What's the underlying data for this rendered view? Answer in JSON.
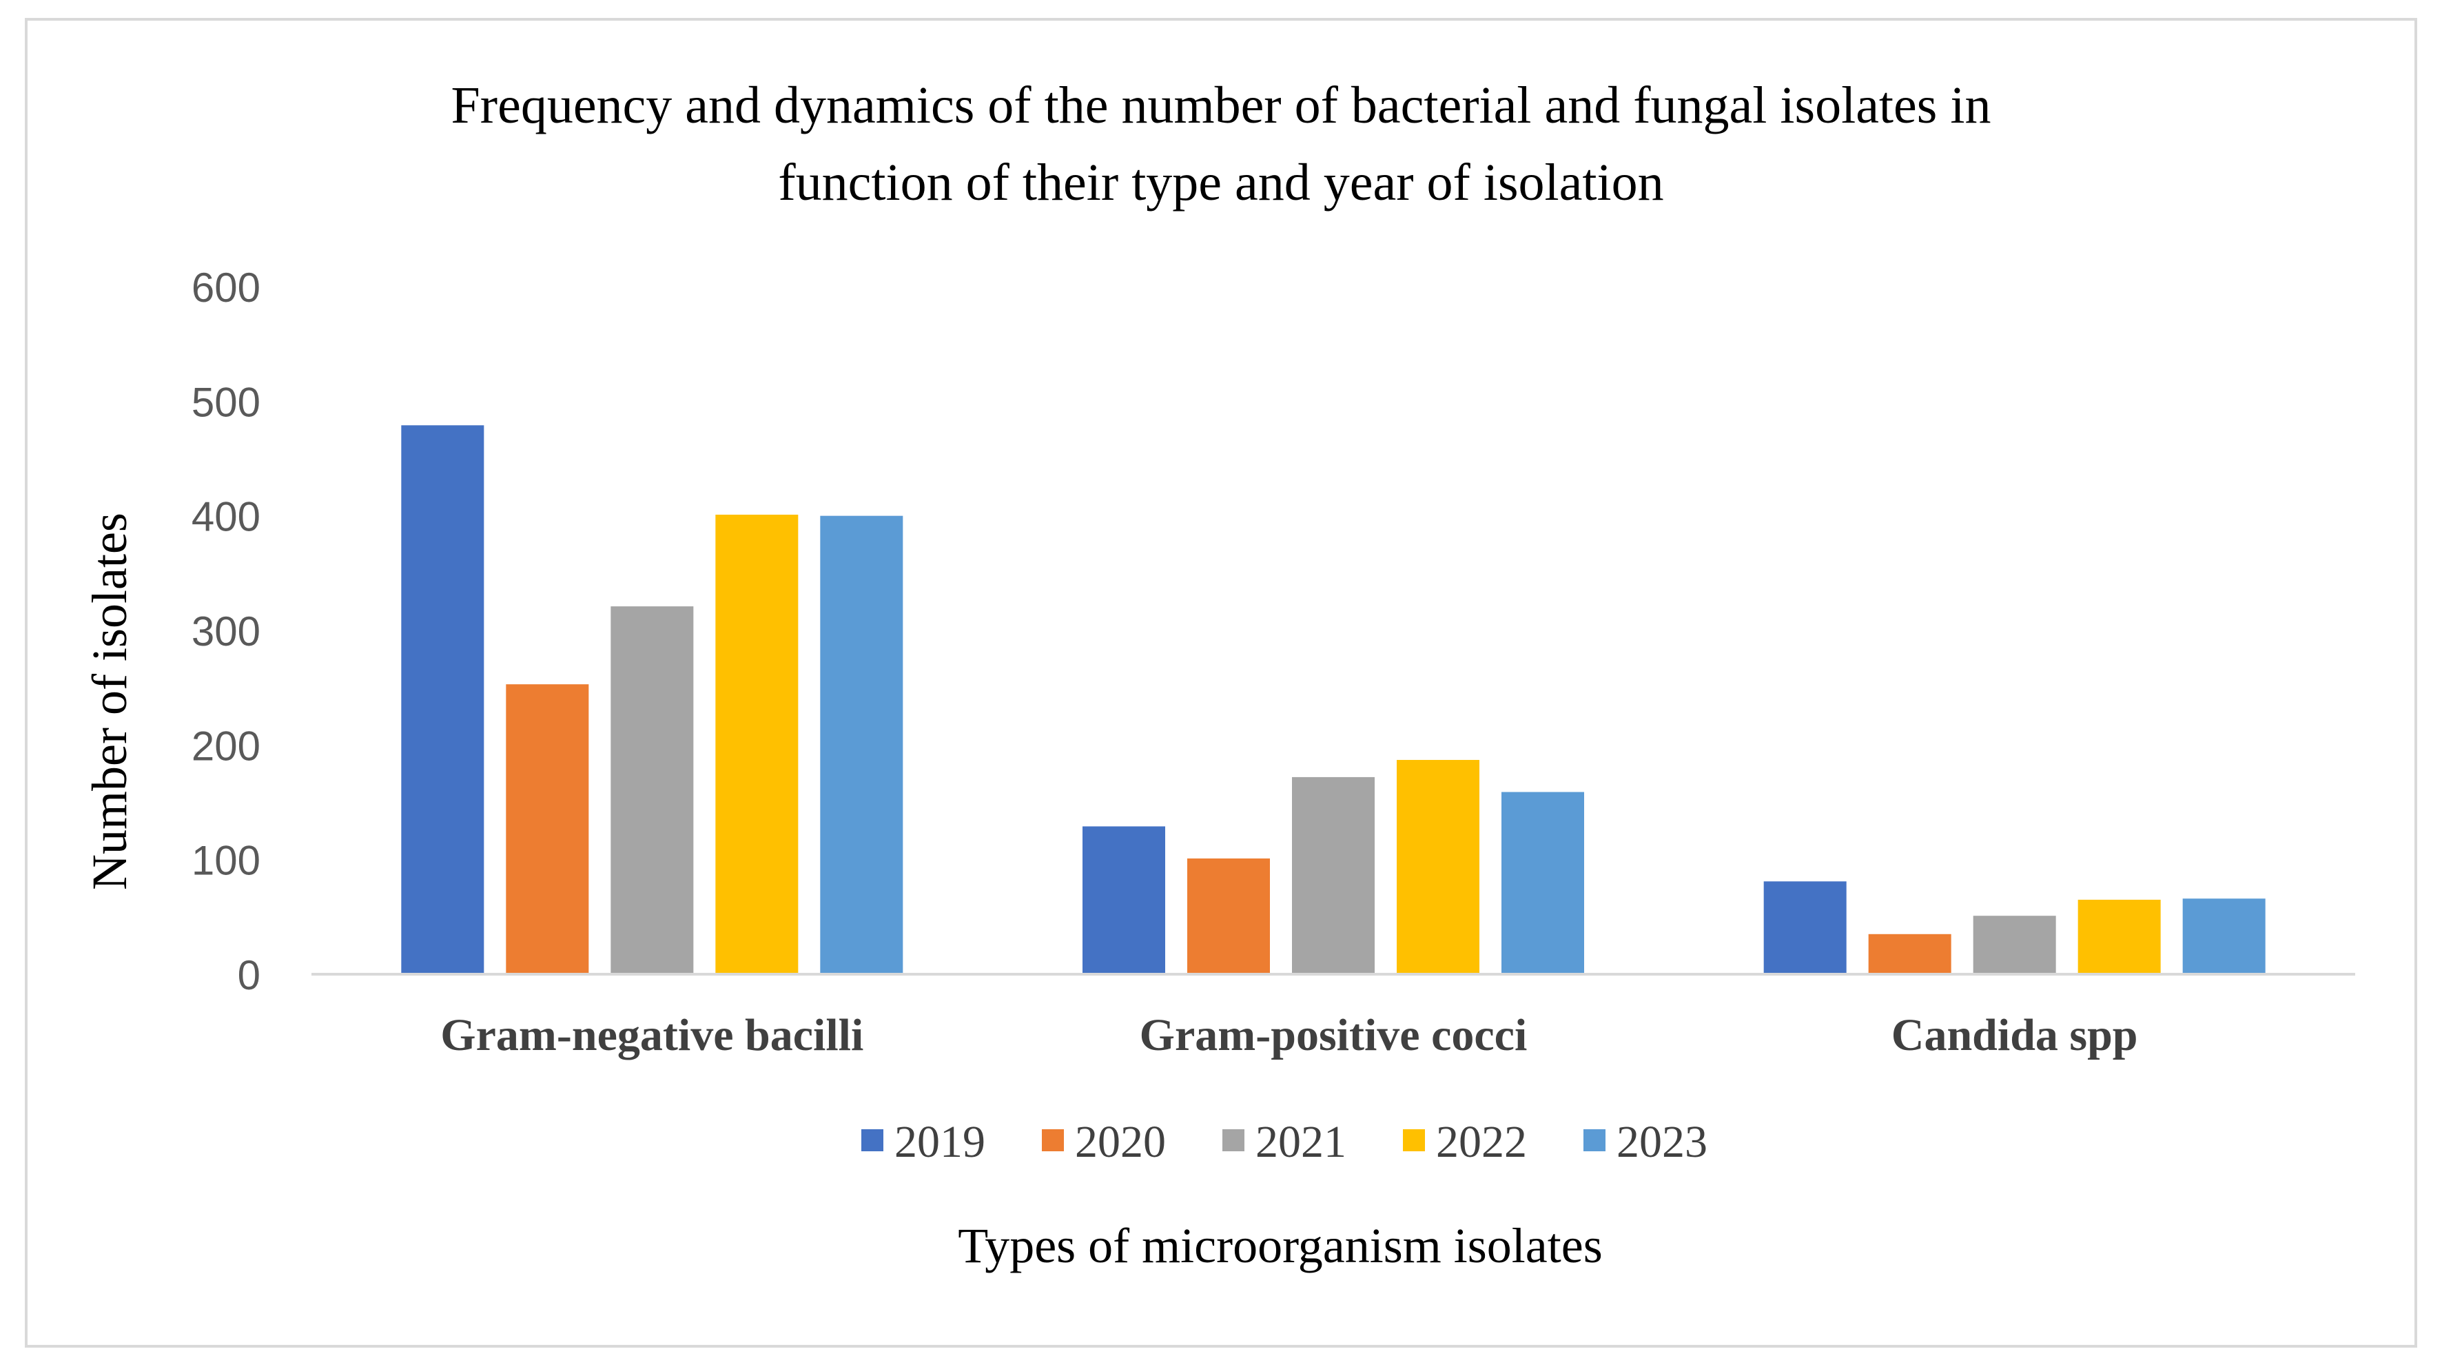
{
  "chart_data": {
    "type": "bar",
    "title_lines": [
      "Frequency and dynamics of the number of bacterial and fungal isolates in",
      "function of their type and year of isolation"
    ],
    "xlabel": "Types of microorganism isolates",
    "ylabel": "Number of isolates",
    "categories": [
      "Gram-negative bacilli",
      "Gram-positive cocci",
      "Candida spp"
    ],
    "yticks": [
      "0",
      "100",
      "200",
      "300",
      "400",
      "500",
      "600"
    ],
    "ylim": [
      0,
      600
    ],
    "grid": false,
    "legend_position": "bottom",
    "series": [
      {
        "name": "2019",
        "color": "#4472C4",
        "values": [
          479,
          129,
          81
        ]
      },
      {
        "name": "2020",
        "color": "#ED7D31",
        "values": [
          253,
          101,
          35
        ]
      },
      {
        "name": "2021",
        "color": "#A5A5A5",
        "values": [
          321,
          172,
          51
        ]
      },
      {
        "name": "2022",
        "color": "#FFC000",
        "values": [
          401,
          187,
          65
        ]
      },
      {
        "name": "2023",
        "color": "#5B9BD5",
        "values": [
          400,
          159,
          66
        ]
      }
    ]
  }
}
